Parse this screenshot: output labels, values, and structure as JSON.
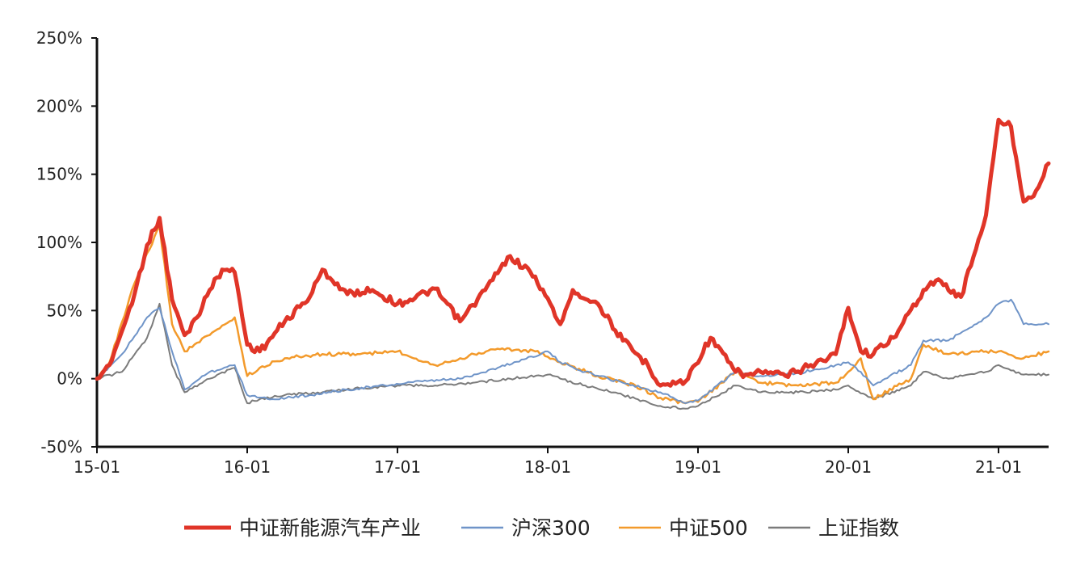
{
  "chart_data": {
    "type": "line",
    "title": "",
    "xlabel": "",
    "ylabel": "",
    "ylim": [
      -50,
      250
    ],
    "yticks": [
      -50,
      0,
      50,
      100,
      150,
      200,
      250
    ],
    "ytick_labels": [
      "-50%",
      "0%",
      "50%",
      "100%",
      "150%",
      "200%",
      "250%"
    ],
    "xlim": [
      "2015-01",
      "2021-05"
    ],
    "xticks": [
      "2015-01",
      "2016-01",
      "2017-01",
      "2018-01",
      "2019-01",
      "2020-01",
      "2021-01"
    ],
    "xtick_labels": [
      "15-01",
      "16-01",
      "17-01",
      "18-01",
      "19-01",
      "20-01",
      "21-01"
    ],
    "grid": false,
    "legend_position": "bottom",
    "series": [
      {
        "name": "中证新能源汽车产业",
        "color": "#e03528",
        "x": [
          "2015-01",
          "2015-02",
          "2015-03",
          "2015-04",
          "2015-05",
          "2015-06",
          "2015-07",
          "2015-08",
          "2015-09",
          "2015-10",
          "2015-11",
          "2015-12",
          "2016-01",
          "2016-02",
          "2016-04",
          "2016-06",
          "2016-07",
          "2016-09",
          "2016-11",
          "2017-01",
          "2017-02",
          "2017-04",
          "2017-06",
          "2017-08",
          "2017-10",
          "2017-12",
          "2018-02",
          "2018-03",
          "2018-05",
          "2018-07",
          "2018-09",
          "2018-10",
          "2018-12",
          "2019-02",
          "2019-04",
          "2019-05",
          "2019-06",
          "2019-08",
          "2019-10",
          "2019-12",
          "2020-01",
          "2020-02",
          "2020-03",
          "2020-05",
          "2020-07",
          "2020-08",
          "2020-10",
          "2020-12",
          "2021-01",
          "2021-02",
          "2021-03",
          "2021-04",
          "2021-05"
        ],
        "values": [
          0,
          10,
          35,
          62,
          98,
          118,
          58,
          32,
          45,
          65,
          80,
          78,
          25,
          20,
          42,
          60,
          80,
          62,
          65,
          55,
          58,
          66,
          42,
          65,
          90,
          75,
          40,
          65,
          55,
          28,
          10,
          -5,
          -2,
          30,
          5,
          3,
          5,
          2,
          10,
          18,
          52,
          20,
          18,
          35,
          65,
          72,
          60,
          120,
          190,
          185,
          130,
          138,
          158
        ]
      },
      {
        "name": "沪深300",
        "color": "#6f94c8",
        "x": [
          "2015-01",
          "2015-03",
          "2015-05",
          "2015-06",
          "2015-07",
          "2015-08",
          "2015-10",
          "2015-12",
          "2016-01",
          "2016-03",
          "2016-06",
          "2016-09",
          "2016-12",
          "2017-03",
          "2017-06",
          "2017-09",
          "2018-01",
          "2018-02",
          "2018-04",
          "2018-07",
          "2018-10",
          "2018-12",
          "2019-01",
          "2019-04",
          "2019-06",
          "2019-09",
          "2019-12",
          "2020-01",
          "2020-02",
          "2020-03",
          "2020-06",
          "2020-07",
          "2020-09",
          "2020-12",
          "2021-01",
          "2021-02",
          "2021-03",
          "2021-05"
        ],
        "values": [
          0,
          18,
          45,
          52,
          20,
          -8,
          5,
          10,
          -12,
          -15,
          -12,
          -8,
          -5,
          -2,
          0,
          8,
          20,
          12,
          5,
          -3,
          -10,
          -18,
          -16,
          5,
          2,
          4,
          10,
          12,
          5,
          -5,
          10,
          28,
          28,
          45,
          55,
          58,
          40,
          40
        ]
      },
      {
        "name": "中证500",
        "color": "#f39a2b",
        "x": [
          "2015-01",
          "2015-02",
          "2015-04",
          "2015-06",
          "2015-07",
          "2015-08",
          "2015-10",
          "2015-12",
          "2016-01",
          "2016-02",
          "2016-04",
          "2016-07",
          "2016-10",
          "2017-01",
          "2017-04",
          "2017-06",
          "2017-09",
          "2017-12",
          "2018-02",
          "2018-05",
          "2018-08",
          "2018-10",
          "2018-12",
          "2019-01",
          "2019-04",
          "2019-06",
          "2019-09",
          "2019-12",
          "2020-01",
          "2020-02",
          "2020-03",
          "2020-06",
          "2020-07",
          "2020-09",
          "2020-12",
          "2021-01",
          "2021-03",
          "2021-05"
        ],
        "values": [
          0,
          12,
          70,
          112,
          40,
          20,
          32,
          45,
          2,
          8,
          15,
          18,
          18,
          20,
          10,
          15,
          22,
          20,
          12,
          2,
          -5,
          -14,
          -18,
          -17,
          5,
          -3,
          -5,
          -3,
          5,
          15,
          -15,
          0,
          25,
          18,
          20,
          20,
          15,
          20
        ]
      },
      {
        "name": "上证指数",
        "color": "#7b7b7b",
        "x": [
          "2015-01",
          "2015-03",
          "2015-05",
          "2015-06",
          "2015-07",
          "2015-08",
          "2015-10",
          "2015-12",
          "2016-01",
          "2016-02",
          "2016-04",
          "2016-07",
          "2016-10",
          "2017-01",
          "2017-04",
          "2017-07",
          "2017-10",
          "2018-01",
          "2018-02",
          "2018-04",
          "2018-07",
          "2018-10",
          "2018-12",
          "2019-01",
          "2019-04",
          "2019-06",
          "2019-09",
          "2019-12",
          "2020-01",
          "2020-03",
          "2020-06",
          "2020-07",
          "2020-09",
          "2020-12",
          "2021-01",
          "2021-03",
          "2021-05"
        ],
        "values": [
          0,
          5,
          30,
          55,
          10,
          -10,
          0,
          8,
          -18,
          -15,
          -12,
          -10,
          -7,
          -5,
          -5,
          -3,
          0,
          3,
          0,
          -5,
          -12,
          -20,
          -22,
          -20,
          -5,
          -10,
          -10,
          -8,
          -5,
          -15,
          -5,
          5,
          0,
          5,
          10,
          3,
          3
        ]
      }
    ]
  }
}
